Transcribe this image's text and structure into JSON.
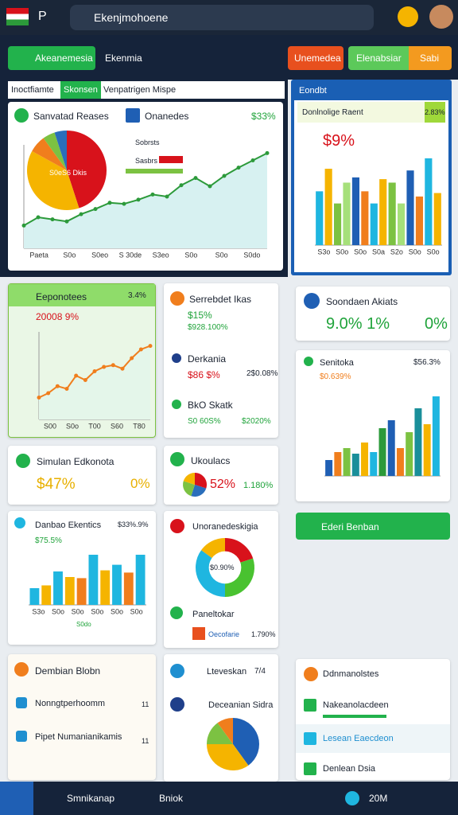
{
  "browser": {
    "tab": "P",
    "url": "Ekenjmohoene"
  },
  "toolbar": {
    "back_button": "Akeanemesia",
    "section": "Ekenmia",
    "buttons": [
      "Unemedea",
      "Elenabsiar",
      "Sabi"
    ]
  },
  "overview": {
    "tabs": [
      "Inoctfiamte",
      "Skonsen",
      "Venpatrigen Mispe"
    ],
    "title": "Sanvatad Reases",
    "subtitle": "Onanedes",
    "change": "$33%",
    "legend": [
      "Sobrsts",
      "Sasbrs"
    ],
    "pie_label": "S0eS6 Dkis",
    "pie": {
      "type": "pie",
      "values": [
        45,
        38,
        7,
        5,
        5
      ],
      "colors": [
        "#d8121b",
        "#f5b400",
        "#f07e1d",
        "#7cc242",
        "#2a6ebb"
      ]
    },
    "line": {
      "type": "line",
      "values": [
        22,
        30,
        28,
        26,
        33,
        38,
        44,
        43,
        47,
        52,
        50,
        61,
        68,
        60,
        70,
        78,
        85,
        92
      ],
      "ylim": [
        0,
        100
      ],
      "color": "#2c9a3a",
      "fill": "#d7f1f1",
      "x_labels": [
        "Paeta",
        "S0o",
        "S0eo",
        "S 30de",
        "S3eo",
        "S0o",
        "S0o",
        "S0do"
      ]
    }
  },
  "kpi_panel": {
    "title": "Eondbt",
    "subtitle": "Donlnolige Raent",
    "change": "2.83%",
    "headline": "$9%",
    "chart": {
      "type": "bar",
      "values": [
        62,
        88,
        48,
        72,
        78,
        62,
        48,
        76,
        72,
        48,
        86,
        56,
        100,
        60
      ],
      "ylim": [
        0,
        110
      ],
      "colors": [
        "#1fb6e0",
        "#f5b400",
        "#7cc242",
        "#a6e07a",
        "#1f5fb4",
        "#f07e1d"
      ],
      "x_labels": [
        "S3o",
        "S0o",
        "S0o",
        "S0a",
        "S2o",
        "S0o",
        "S0o"
      ]
    }
  },
  "trend_card": {
    "title": "Eeponotees",
    "change": "3.4%",
    "headline": "20008 9%",
    "chart": {
      "type": "line",
      "values": [
        25,
        30,
        38,
        35,
        50,
        45,
        55,
        60,
        62,
        58,
        70,
        80,
        84
      ],
      "ylim": [
        0,
        100
      ],
      "color": "#f07e1d",
      "fill": "#e4f6ea",
      "x_labels": [
        "S00",
        "S0o",
        "T00",
        "S60",
        "T80"
      ]
    }
  },
  "list_card": {
    "items": [
      {
        "title": "Serrebdet Ikas",
        "value": "$15%",
        "detail": "$928.100%"
      },
      {
        "title": "Derkania",
        "value": "$86 $%",
        "detail": "2$0.08%"
      },
      {
        "title": "BkO Skatk",
        "value": "S0 60S%",
        "detail": "$2020%"
      }
    ]
  },
  "alerts_card": {
    "title": "Soondaen Akiats",
    "values": [
      "9.0% 1%",
      "0%"
    ]
  },
  "bars_card": {
    "title": "Senitoka",
    "change": "$56.3%",
    "subtitle": "$0.639%",
    "chart": {
      "type": "bar",
      "values": [
        20,
        30,
        35,
        28,
        42,
        30,
        60,
        70,
        35,
        55,
        85,
        65,
        100
      ],
      "ylim": [
        0,
        110
      ],
      "colors": [
        "#1f5fb4",
        "#f07e1d",
        "#7cc242",
        "#1a8f9a",
        "#f5b400",
        "#1fb6e0",
        "#2c9a3a"
      ]
    }
  },
  "sim_card": {
    "title": "Simulan Edkonota",
    "values": [
      "$47%",
      "0%"
    ]
  },
  "pie_card": {
    "title": "Ukoulacs",
    "values": [
      "52%",
      "1.180%"
    ],
    "chart": {
      "type": "pie",
      "values": [
        30,
        25,
        25,
        20
      ],
      "colors": [
        "#d8121b",
        "#2a6ebb",
        "#7cc242",
        "#f5b400"
      ]
    }
  },
  "action_button": "Ederi Benban",
  "column_card": {
    "title": "Danbao Ekentics",
    "change": "$33%.9%",
    "subtitle": "$75.5%",
    "footer": "S0do",
    "chart": {
      "type": "bar",
      "values": [
        30,
        35,
        60,
        50,
        48,
        90,
        62,
        72,
        58,
        90
      ],
      "ylim": [
        0,
        100
      ],
      "colors": [
        "#1fb6e0",
        "#f5b400",
        "#1fb6e0",
        "#f5b400",
        "#f07e1d",
        "#1fb6e0",
        "#f5b400",
        "#1fb6e0",
        "#f07e1d",
        "#1fb6e0"
      ],
      "x_labels": [
        "S3o",
        "S0o",
        "S0o",
        "S0o",
        "S0o",
        "S0o"
      ]
    }
  },
  "donut_card": {
    "title": "Unoranedeskigia",
    "center": "$0.90%",
    "subtitle": "Paneltokar",
    "legend": "Oecofarie",
    "legend_value": "1.790%",
    "chart": {
      "type": "donut",
      "values": [
        20,
        30,
        35,
        15
      ],
      "colors": [
        "#d8121b",
        "#49c230",
        "#1fb6e0",
        "#f5b400"
      ]
    }
  },
  "side_list": {
    "title": "Dembian Blobn",
    "items": [
      {
        "label": "Nonngtperhoomm",
        "value": "11"
      },
      {
        "label": "Pipet Numanianikamis",
        "value": "11"
      }
    ]
  },
  "pie_card2": {
    "title": "Lteveskan",
    "value": "7/4",
    "subtitle": "Deceanian Sidra",
    "chart": {
      "type": "pie",
      "values": [
        40,
        35,
        15,
        10
      ],
      "colors": [
        "#1f5fb4",
        "#f5b400",
        "#7cc242",
        "#f07e1d"
      ]
    }
  },
  "menu": {
    "items": [
      "Ddnmanolstes",
      "Nakeanolacdeen",
      "Lesean Eaecdeon",
      "Denlean Dsia"
    ]
  },
  "bottom_nav": {
    "items": [
      "Smnikanap",
      "Bniok",
      "20M"
    ]
  }
}
